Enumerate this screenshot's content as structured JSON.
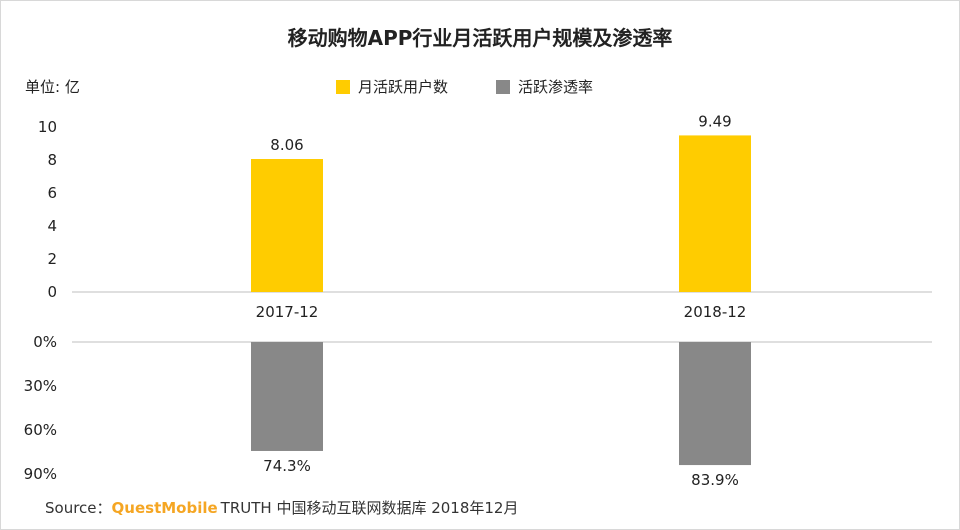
{
  "title": "移动购物APP行业月活跃用户规模及渗透率",
  "unit_label": "单位: 亿",
  "source": {
    "prefix": "Source：",
    "brand": "QuestMobile",
    "text": "TRUTH 中国移动互联网数据库 2018年12月"
  },
  "colors": {
    "mau": "#FFCC00",
    "penetration": "#888888",
    "axis": "#bfbfbf"
  },
  "chart_data": [
    {
      "type": "bar",
      "categories": [
        "2017-12",
        "2018-12"
      ],
      "series": [
        {
          "name": "月活跃用户数",
          "values": [
            8.06,
            9.49
          ],
          "labels": [
            "8.06",
            "9.49"
          ]
        }
      ],
      "ylim": [
        0,
        10
      ],
      "yticks": [
        "0",
        "2",
        "4",
        "6",
        "8",
        "10"
      ],
      "ylabel": "单位: 亿"
    },
    {
      "type": "bar",
      "categories": [
        "2017-12",
        "2018-12"
      ],
      "series": [
        {
          "name": "活跃渗透率",
          "values": [
            74.3,
            83.9
          ],
          "labels": [
            "74.3%",
            "83.9%"
          ]
        }
      ],
      "ylim": [
        0,
        90
      ],
      "inverted": true,
      "yticks": [
        "0%",
        "30%",
        "60%",
        "90%"
      ]
    }
  ]
}
